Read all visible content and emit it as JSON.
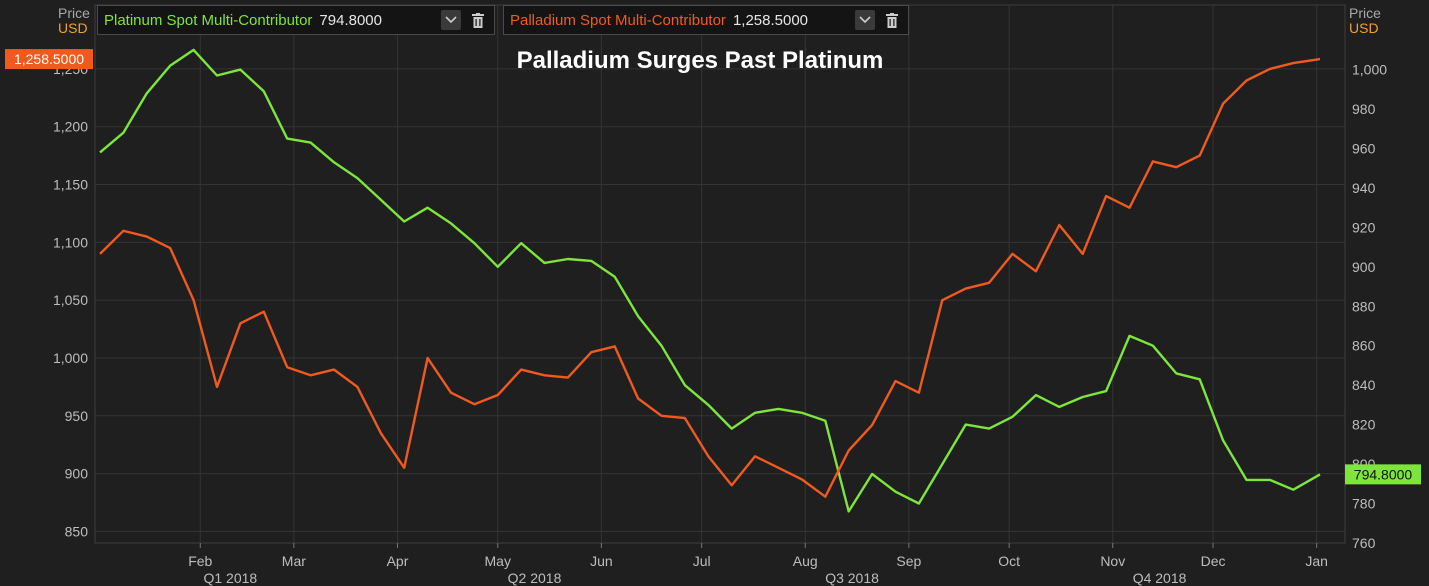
{
  "legend": [
    {
      "name": "Platinum Spot Multi-Contributor",
      "value": "794.8000",
      "color": "#7ee53a"
    },
    {
      "name": "Palladium Spot Multi-Contributor",
      "value": "1,258.5000",
      "color": "#f05a1e"
    }
  ],
  "axis_headers": {
    "left": {
      "price": "Price",
      "unit": "USD"
    },
    "right": {
      "price": "Price",
      "unit": "USD"
    }
  },
  "icons": {
    "dropdown": "chevron-down-icon",
    "delete": "trash-icon"
  },
  "chart_data": {
    "type": "line",
    "title": "Palladium Surges Past Platinum",
    "x": [
      "2018-01-02",
      "2018-01-09",
      "2018-01-16",
      "2018-01-23",
      "2018-01-30",
      "2018-02-06",
      "2018-02-13",
      "2018-02-20",
      "2018-02-27",
      "2018-03-06",
      "2018-03-13",
      "2018-03-20",
      "2018-03-27",
      "2018-04-03",
      "2018-04-10",
      "2018-04-17",
      "2018-04-24",
      "2018-05-01",
      "2018-05-08",
      "2018-05-15",
      "2018-05-22",
      "2018-05-29",
      "2018-06-05",
      "2018-06-12",
      "2018-06-19",
      "2018-06-26",
      "2018-07-03",
      "2018-07-10",
      "2018-07-17",
      "2018-07-24",
      "2018-07-31",
      "2018-08-07",
      "2018-08-14",
      "2018-08-21",
      "2018-08-28",
      "2018-09-04",
      "2018-09-11",
      "2018-09-18",
      "2018-09-25",
      "2018-10-02",
      "2018-10-09",
      "2018-10-16",
      "2018-10-23",
      "2018-10-30",
      "2018-11-06",
      "2018-11-13",
      "2018-11-20",
      "2018-11-27",
      "2018-12-04",
      "2018-12-11",
      "2018-12-18",
      "2018-12-25",
      "2019-01-02"
    ],
    "series": [
      {
        "name": "Platinum Spot Multi-Contributor",
        "axis": "right",
        "color": "#7ee53a",
        "values": [
          958,
          968,
          988,
          1002,
          1010,
          997,
          1000,
          989,
          965,
          963,
          953,
          945,
          934,
          923,
          930,
          922,
          912,
          900,
          912,
          902,
          904,
          903,
          895,
          875,
          860,
          840,
          830,
          818,
          826,
          828,
          826,
          822,
          776,
          795,
          786,
          780,
          800,
          820,
          818,
          824,
          835,
          829,
          834,
          837,
          865,
          860,
          846,
          843,
          812,
          792,
          792,
          787,
          794.8
        ]
      },
      {
        "name": "Palladium Spot Multi-Contributor",
        "axis": "left",
        "color": "#f05a1e",
        "values": [
          1090,
          1110,
          1105,
          1095,
          1050,
          975,
          1030,
          1040,
          992,
          985,
          990,
          975,
          935,
          905,
          1000,
          970,
          960,
          968,
          990,
          985,
          983,
          1005,
          1010,
          965,
          950,
          948,
          915,
          890,
          915,
          905,
          895,
          880,
          920,
          942,
          980,
          970,
          1050,
          1060,
          1065,
          1090,
          1075,
          1115,
          1090,
          1140,
          1130,
          1170,
          1165,
          1175,
          1220,
          1240,
          1250,
          1255,
          1258.5
        ]
      }
    ],
    "left_axis": {
      "ylim": [
        840,
        1275
      ],
      "ticks": [
        "850",
        "900",
        "950",
        "1,000",
        "1,050",
        "1,100",
        "1,150",
        "1,200",
        "1,250"
      ]
    },
    "right_axis": {
      "ylim": [
        760,
        1015
      ],
      "ticks": [
        "760",
        "780",
        "800",
        "820",
        "840",
        "860",
        "880",
        "900",
        "920",
        "940",
        "960",
        "980",
        "1,000"
      ]
    },
    "months": [
      "Feb",
      "Mar",
      "Apr",
      "May",
      "Jun",
      "Jul",
      "Aug",
      "Sep",
      "Oct",
      "Nov",
      "Dec",
      "Jan"
    ],
    "quarters": [
      "Q1 2018",
      "Q2 2018",
      "Q3 2018",
      "Q4 2018"
    ],
    "last_labels": {
      "left": "1,258.5000",
      "right": "794.8000"
    },
    "grid": true
  }
}
